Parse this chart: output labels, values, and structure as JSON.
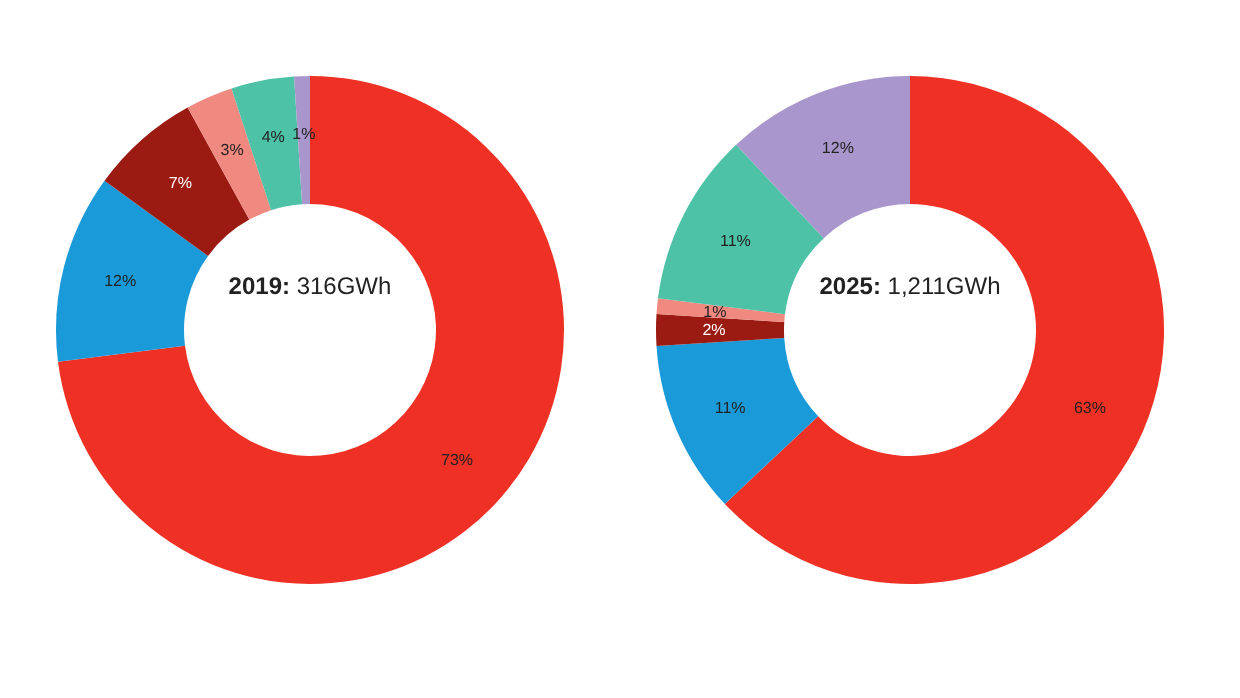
{
  "chart_data": [
    {
      "type": "donut",
      "title": "2019:",
      "subtitle": "316GWh",
      "categories": [
        null,
        null,
        null,
        null,
        null,
        null
      ],
      "values": [
        73,
        12,
        7,
        3,
        4,
        1
      ],
      "colors": [
        "#ee3124",
        "#1a9ad9",
        "#9b1b12",
        "#f08a80",
        "#4dc2a7",
        "#a996cc"
      ],
      "value_labels": [
        "73%",
        "12%",
        "7%",
        "3%",
        "4%",
        "1%"
      ]
    },
    {
      "type": "donut",
      "title": "2025:",
      "subtitle": "1,211GWh",
      "categories": [
        null,
        null,
        null,
        null,
        null,
        null
      ],
      "values": [
        63,
        11,
        2,
        1,
        11,
        12
      ],
      "colors": [
        "#ee3124",
        "#1a9ad9",
        "#9b1b12",
        "#f08a80",
        "#4dc2a7",
        "#a996cc"
      ],
      "value_labels": [
        "63%",
        "11%",
        "2%",
        "1%",
        "11%",
        "12%"
      ]
    }
  ]
}
